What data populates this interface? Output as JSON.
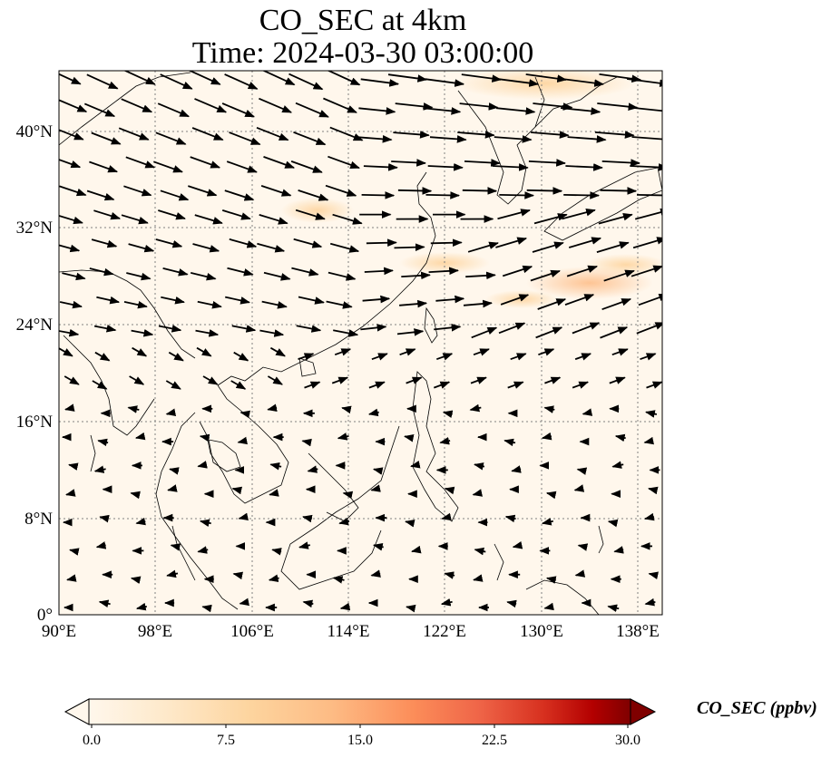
{
  "title": "CO_SEC at 4km",
  "subtitle": "Time: 2024-03-30 03:00:00",
  "map": {
    "lon_range": [
      90,
      140
    ],
    "lat_range": [
      0,
      45
    ],
    "x_ticks": [
      "90°E",
      "98°E",
      "106°E",
      "114°E",
      "122°E",
      "130°E",
      "138°E"
    ],
    "y_ticks": [
      "0°",
      "8°N",
      "16°N",
      "24°N",
      "32°N",
      "40°N"
    ],
    "gridlines": "dotted"
  },
  "colorbar": {
    "label": "CO_SEC (ppbv)",
    "min": 0.0,
    "max": 30.0,
    "ticks": [
      "0.0",
      "7.5",
      "15.0",
      "22.5",
      "30.0"
    ],
    "colormap": "OrRd",
    "extend": "both"
  },
  "colors": {
    "field_low": "#fff7ec",
    "field_mid": "#fdd49e",
    "field_high": "#7f0000",
    "coast": "#000000",
    "grid": "#808080"
  }
}
